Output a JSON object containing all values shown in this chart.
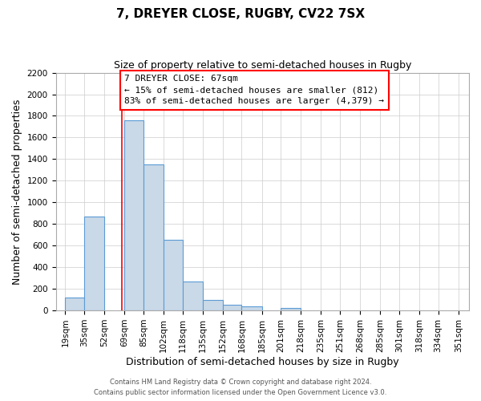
{
  "title1": "7, DREYER CLOSE, RUGBY, CV22 7SX",
  "title2": "Size of property relative to semi-detached houses in Rugby",
  "xlabel": "Distribution of semi-detached houses by size in Rugby",
  "ylabel": "Number of semi-detached properties",
  "footer1": "Contains HM Land Registry data © Crown copyright and database right 2024.",
  "footer2": "Contains public sector information licensed under the Open Government Licence v3.0.",
  "bin_edges": [
    19,
    35,
    52,
    69,
    85,
    102,
    118,
    135,
    152,
    168,
    185,
    201,
    218,
    235,
    251,
    268,
    285,
    301,
    318,
    334,
    351
  ],
  "bar_heights": [
    120,
    870,
    0,
    1760,
    1350,
    650,
    270,
    100,
    50,
    35,
    0,
    20,
    0,
    0,
    0,
    0,
    0,
    0,
    0,
    0
  ],
  "bar_color": "#c9d9e8",
  "bar_edge_color": "#5b9bd5",
  "x_tick_labels": [
    "19sqm",
    "35sqm",
    "52sqm",
    "69sqm",
    "85sqm",
    "102sqm",
    "118sqm",
    "135sqm",
    "152sqm",
    "168sqm",
    "185sqm",
    "201sqm",
    "218sqm",
    "235sqm",
    "251sqm",
    "268sqm",
    "285sqm",
    "301sqm",
    "318sqm",
    "334sqm",
    "351sqm"
  ],
  "x_tick_positions": [
    19,
    35,
    52,
    69,
    85,
    102,
    118,
    135,
    152,
    168,
    185,
    201,
    218,
    235,
    251,
    268,
    285,
    301,
    318,
    334,
    351
  ],
  "ylim": [
    0,
    2200
  ],
  "xlim": [
    11,
    360
  ],
  "property_line_x": 67,
  "annotation_title": "7 DREYER CLOSE: 67sqm",
  "annotation_line1": "← 15% of semi-detached houses are smaller (812)",
  "annotation_line2": "83% of semi-detached houses are larger (4,379) →",
  "grid_color": "#cccccc",
  "background_color": "#ffffff",
  "title_fontsize": 11,
  "subtitle_fontsize": 9,
  "axis_label_fontsize": 9,
  "tick_fontsize": 7.5,
  "footer_fontsize": 6
}
